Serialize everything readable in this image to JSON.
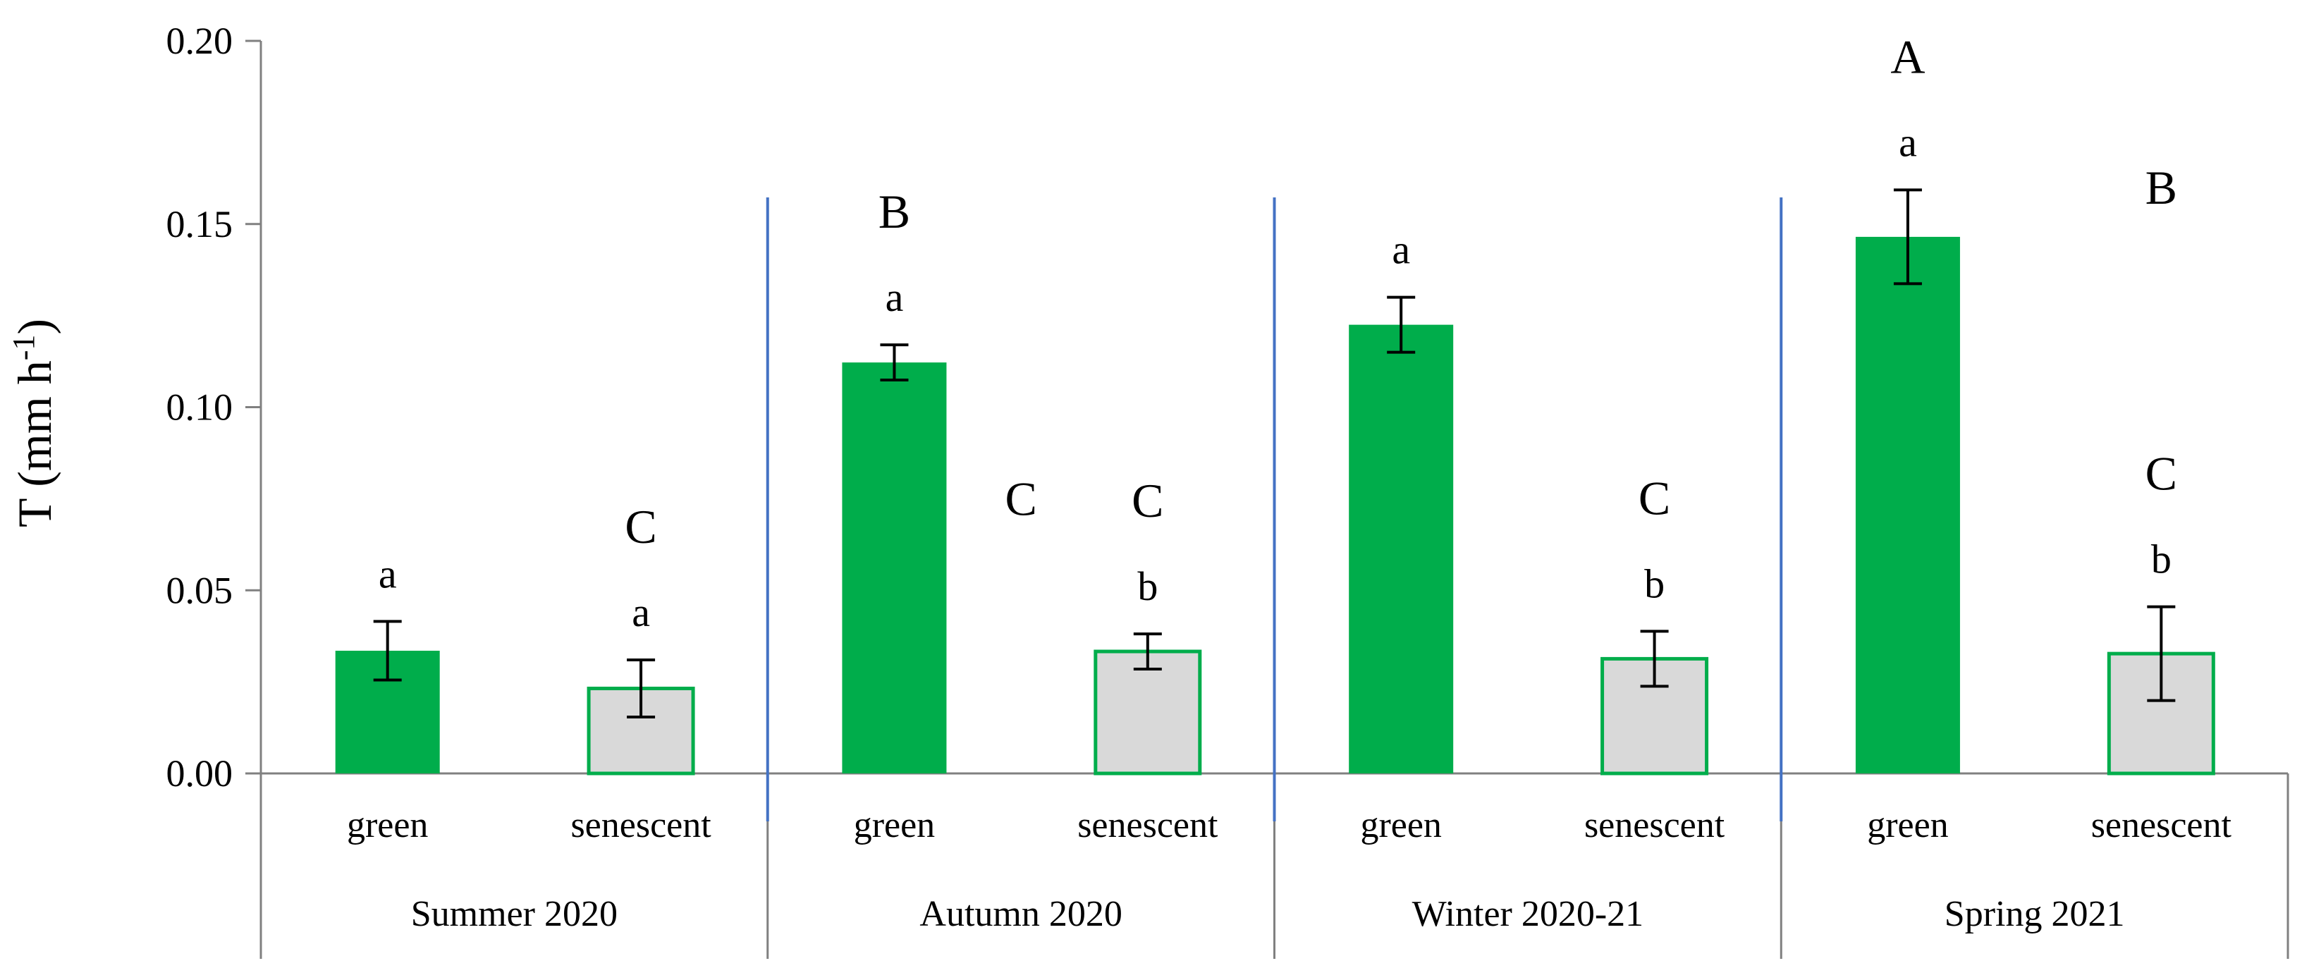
{
  "chart_data": {
    "type": "bar",
    "xlabel": "",
    "ylabel": "T (mm h",
    "ylabel_sup": "-1",
    "ylabel_close": ")",
    "ylim": [
      0,
      0.2
    ],
    "yticks": [
      "0.00",
      "0.05",
      "0.10",
      "0.15",
      "0.20"
    ],
    "ytick_values": [
      0,
      0.05,
      0.1,
      0.15,
      0.2
    ],
    "groups": [
      {
        "label": "Summer 2020",
        "bars": [
          {
            "category": "green",
            "value": 0.0335,
            "err": 0.008,
            "letters": [
              "a"
            ]
          },
          {
            "category": "senescent",
            "value": 0.0232,
            "err": 0.0078,
            "letters": [
              "C",
              "a"
            ]
          }
        ]
      },
      {
        "label": "Autumn 2020",
        "bars": [
          {
            "category": "green",
            "value": 0.1122,
            "err": 0.0048,
            "letters": [
              "B",
              "a"
            ]
          },
          {
            "category": "senescent",
            "value": 0.0333,
            "err": 0.0048,
            "letters": [
              "C",
              "b"
            ]
          }
        ]
      },
      {
        "label": "Winter 2020-21",
        "bars": [
          {
            "category": "green",
            "value": 0.1225,
            "err": 0.0075,
            "letters": [
              "a"
            ]
          },
          {
            "category": "senescent",
            "value": 0.0313,
            "err": 0.0075,
            "letters": [
              "C",
              "b"
            ]
          }
        ]
      },
      {
        "label": "Spring 2021",
        "bars": [
          {
            "category": "green",
            "value": 0.1465,
            "err": 0.0128,
            "letters": [
              "A",
              "a"
            ]
          },
          {
            "category": "senescent",
            "value": 0.0327,
            "err": 0.0128,
            "letters": [
              "C",
              "b"
            ]
          }
        ]
      }
    ],
    "floating_letters": [
      {
        "text": "C",
        "group": 1,
        "slot": 0.5,
        "value": 0.075
      },
      {
        "text": "B",
        "group": 3,
        "slot": 0.75,
        "value": 0.16
      }
    ],
    "colors": {
      "green_fill": "#00ad4b",
      "senescent_fill": "#d9d9d9",
      "senescent_stroke": "#00ad4b",
      "axis": "#808080",
      "separator": "#4472c4",
      "error_bar": "#000000"
    }
  }
}
